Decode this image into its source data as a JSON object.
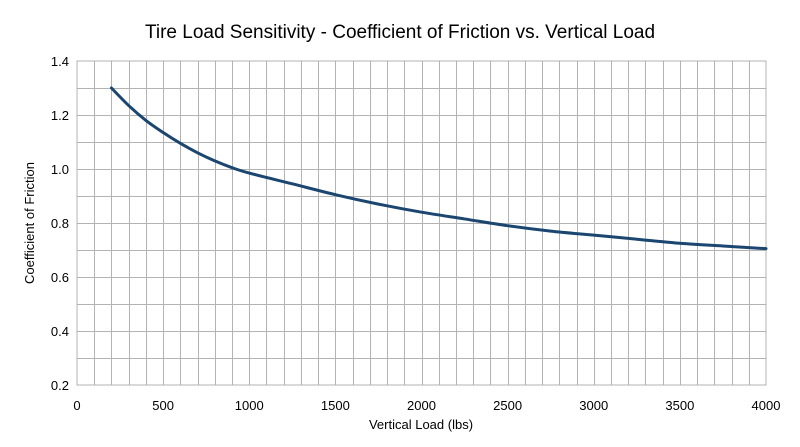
{
  "chart_data": {
    "type": "line",
    "title": "Tire Load Sensitivity - Coefficient of Friction vs. Vertical Load",
    "xlabel": "Vertical Load (lbs)",
    "ylabel": "Coefficient of Friction",
    "xlim": [
      0,
      4000
    ],
    "ylim": [
      0.2,
      1.4
    ],
    "x_ticks": [
      0,
      500,
      1000,
      1500,
      2000,
      2500,
      3000,
      3500,
      4000
    ],
    "x_tick_labels": [
      "0",
      "500",
      "1000",
      "1500",
      "2000",
      "2500",
      "3000",
      "3500",
      "4000"
    ],
    "x_minor_step": 100,
    "y_ticks": [
      0.2,
      0.4,
      0.6,
      0.8,
      1.0,
      1.2,
      1.4
    ],
    "y_tick_labels": [
      "0.2",
      "0.4",
      "0.6",
      "0.8",
      "1.0",
      "1.2",
      "1.4"
    ],
    "y_minor_step": 0.1,
    "grid": true,
    "legend": "none",
    "series": [
      {
        "color": "#1b4670",
        "x": [
          200,
          300,
          400,
          500,
          600,
          700,
          800,
          900,
          1000,
          1250,
          1500,
          1750,
          2000,
          2250,
          2500,
          2750,
          3000,
          3250,
          3500,
          3750,
          4000
        ],
        "y": [
          1.3,
          1.235,
          1.18,
          1.135,
          1.095,
          1.06,
          1.03,
          1.005,
          0.985,
          0.945,
          0.905,
          0.87,
          0.84,
          0.815,
          0.79,
          0.77,
          0.755,
          0.74,
          0.725,
          0.715,
          0.705
        ]
      }
    ]
  }
}
